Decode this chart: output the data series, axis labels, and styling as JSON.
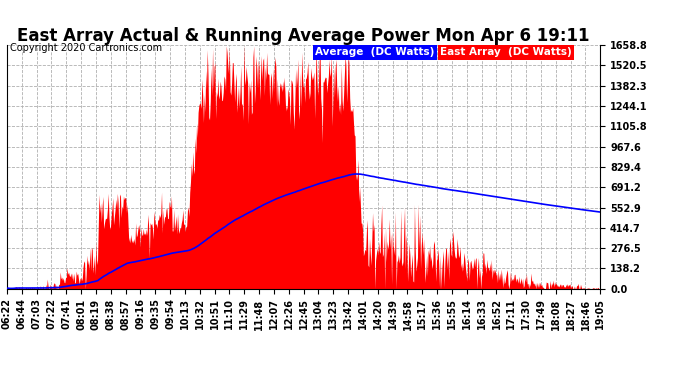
{
  "title": "East Array Actual & Running Average Power Mon Apr 6 19:11",
  "copyright": "Copyright 2020 Cartronics.com",
  "legend_avg": "Average  (DC Watts)",
  "legend_east": "East Array  (DC Watts)",
  "y_max": 1658.8,
  "y_min": 0.0,
  "yticks": [
    0.0,
    138.2,
    276.5,
    414.7,
    552.9,
    691.2,
    829.4,
    967.6,
    1105.8,
    1244.1,
    1382.3,
    1520.5,
    1658.8
  ],
  "xtick_labels": [
    "06:22",
    "06:44",
    "07:03",
    "07:22",
    "07:41",
    "08:01",
    "08:19",
    "08:38",
    "08:57",
    "09:16",
    "09:35",
    "09:54",
    "10:13",
    "10:32",
    "10:51",
    "11:10",
    "11:29",
    "11:48",
    "12:07",
    "12:26",
    "12:45",
    "13:04",
    "13:23",
    "13:42",
    "14:01",
    "14:20",
    "14:39",
    "14:58",
    "15:17",
    "15:36",
    "15:55",
    "16:14",
    "16:33",
    "16:52",
    "17:11",
    "17:30",
    "17:49",
    "18:08",
    "18:27",
    "18:46",
    "19:05"
  ],
  "background_color": "#ffffff",
  "plot_bg_color": "#ffffff",
  "grid_color": "#b0b0b0",
  "east_array_color": "#ff0000",
  "avg_line_color": "#0000ff",
  "title_fontsize": 12,
  "tick_fontsize": 7,
  "copyright_fontsize": 7
}
